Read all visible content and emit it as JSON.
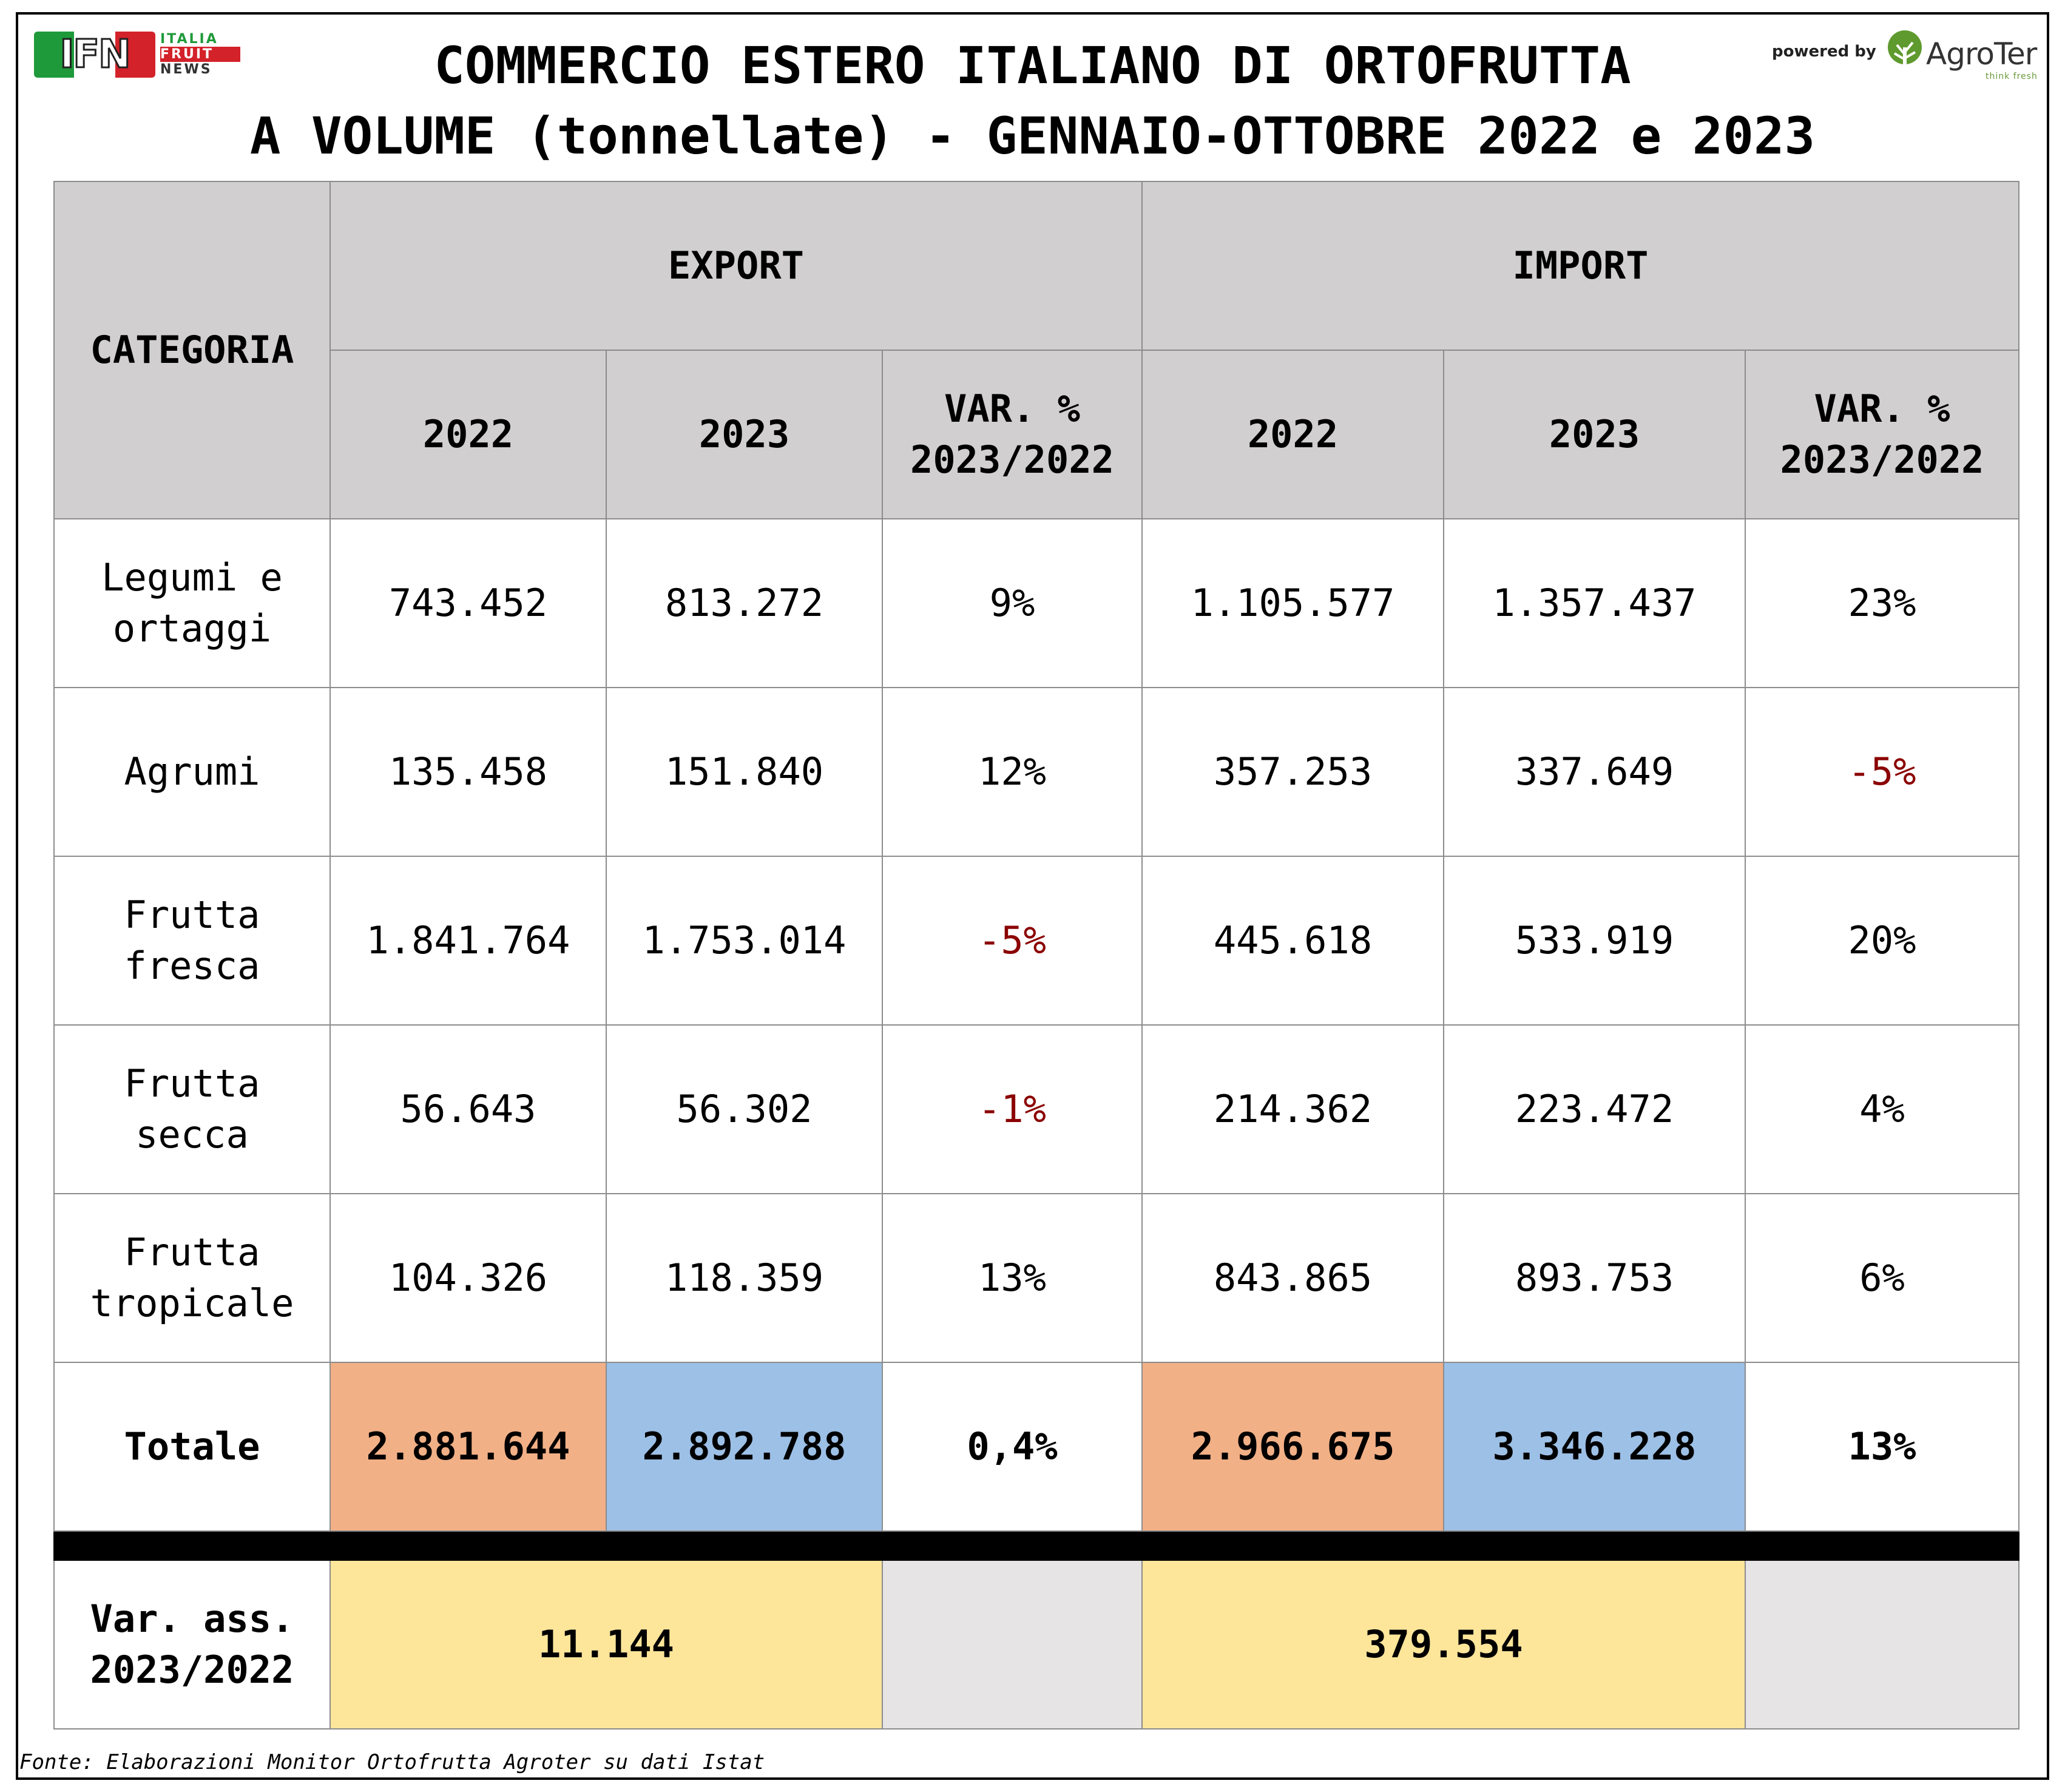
{
  "logos": {
    "ifn": {
      "mark": "IFN",
      "line1": "ITALIA",
      "line2": "FRUIT",
      "line3": "NEWS"
    },
    "agroter": {
      "powered": "powered by",
      "name": "AgroTer",
      "tagline": "think fresh"
    }
  },
  "title": {
    "line1": "COMMERCIO ESTERO ITALIANO DI ORTOFRUTTA",
    "line2": "A VOLUME (tonnellate) - GENNAIO-OTTOBRE 2022 e 2023"
  },
  "chart_data": {
    "type": "table",
    "headers": {
      "category": "CATEGORIA",
      "export": "EXPORT",
      "import": "IMPORT",
      "year_2022": "2022",
      "year_2023": "2023",
      "var_line1": "VAR. %",
      "var_line2": "2023/2022"
    },
    "rows": [
      {
        "category": [
          "Legumi e",
          "ortaggi"
        ],
        "export_2022": "743.452",
        "export_2023": "813.272",
        "export_var": "9%",
        "import_2022": "1.105.577",
        "import_2023": "1.357.437",
        "import_var": "23%"
      },
      {
        "category": [
          "Agrumi"
        ],
        "export_2022": "135.458",
        "export_2023": "151.840",
        "export_var": "12%",
        "import_2022": "357.253",
        "import_2023": "337.649",
        "import_var": "-5%"
      },
      {
        "category": [
          "Frutta",
          "fresca"
        ],
        "export_2022": "1.841.764",
        "export_2023": "1.753.014",
        "export_var": "-5%",
        "import_2022": "445.618",
        "import_2023": "533.919",
        "import_var": "20%"
      },
      {
        "category": [
          "Frutta",
          "secca"
        ],
        "export_2022": "56.643",
        "export_2023": "56.302",
        "export_var": "-1%",
        "import_2022": "214.362",
        "import_2023": "223.472",
        "import_var": "4%"
      },
      {
        "category": [
          "Frutta",
          "tropicale"
        ],
        "export_2022": "104.326",
        "export_2023": "118.359",
        "export_var": "13%",
        "import_2022": "843.865",
        "import_2023": "893.753",
        "import_var": "6%"
      }
    ],
    "total": {
      "label": "Totale",
      "export_2022": "2.881.644",
      "export_2023": "2.892.788",
      "export_var": "0,4%",
      "import_2022": "2.966.675",
      "import_2023": "3.346.228",
      "import_var": "13%"
    },
    "abs_var": {
      "label_line1": "Var. ass.",
      "label_line2": "2023/2022",
      "export": "11.144",
      "import": "379.554"
    }
  },
  "colors": {
    "header_bg": "#d1cfcf",
    "negative": "#8b0000",
    "total_2022": "#f2b086",
    "total_2023": "#9dc0e6",
    "abs_var": "#fde59a"
  },
  "source": "Fonte: Elaborazioni Monitor Ortofrutta Agroter su dati Istat"
}
